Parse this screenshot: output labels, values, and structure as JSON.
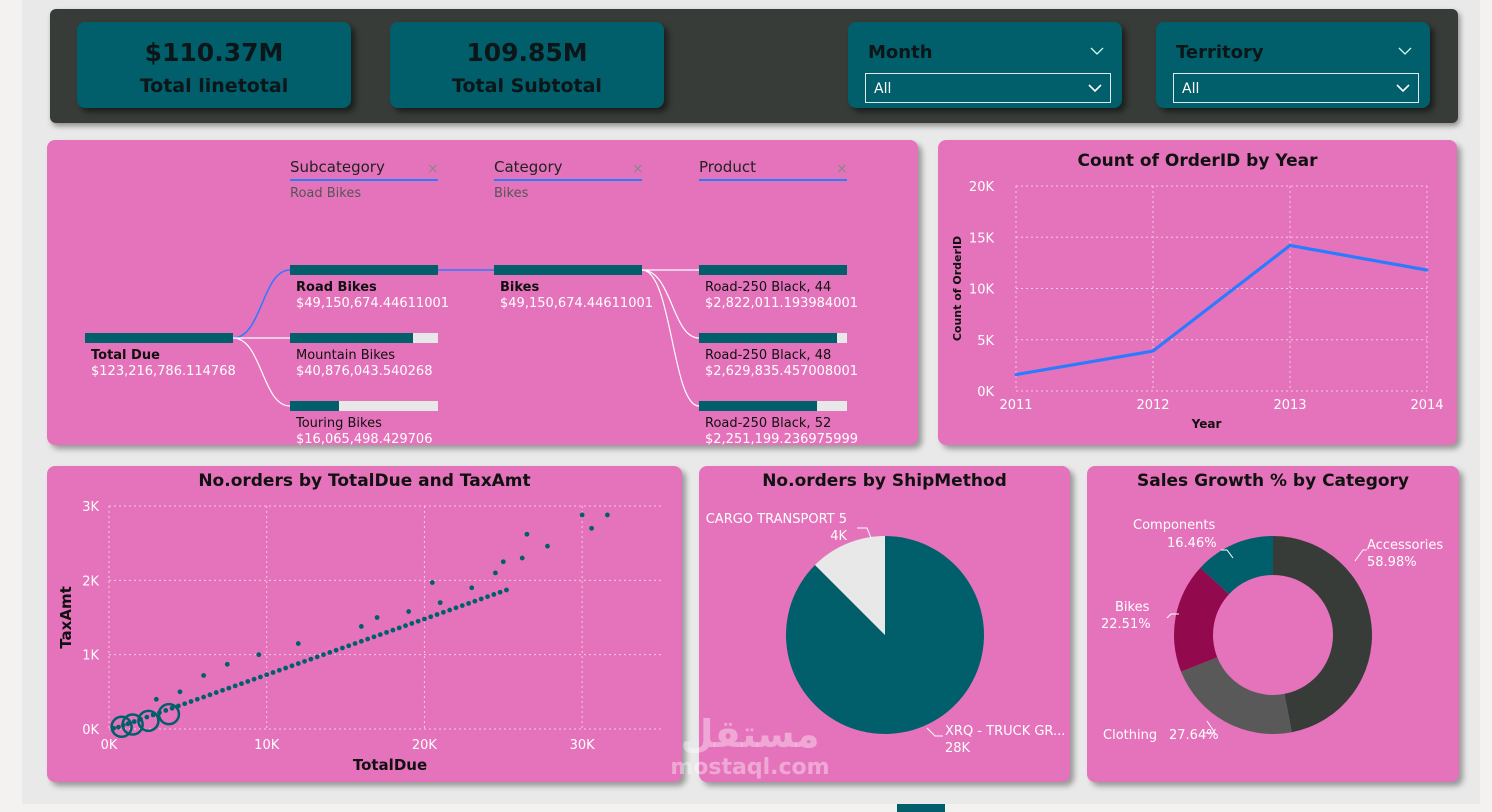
{
  "kpis": [
    {
      "value": "$110.37M",
      "label": "Total linetotal"
    },
    {
      "value": "109.85M",
      "label": "Total Subtotal"
    }
  ],
  "slicers": [
    {
      "title": "Month",
      "selected": "All"
    },
    {
      "title": "Territory",
      "selected": "All"
    }
  ],
  "decomposition": {
    "levels": [
      {
        "header": "Subcategory",
        "selection": "Road Bikes"
      },
      {
        "header": "Category",
        "selection": "Bikes"
      },
      {
        "header": "Product",
        "selection": ""
      }
    ],
    "root": {
      "label": "Total Due",
      "value": "$123,216,786.114768"
    },
    "subcategories": [
      {
        "label": "Road Bikes",
        "value": "$49,150,674.44611001",
        "fill": 1.0
      },
      {
        "label": "Mountain Bikes",
        "value": "$40,876,043.540268",
        "fill": 0.83
      },
      {
        "label": "Touring Bikes",
        "value": "$16,065,498.429706",
        "fill": 0.33
      }
    ],
    "categories": [
      {
        "label": "Bikes",
        "value": "$49,150,674.44611001",
        "fill": 1.0
      }
    ],
    "products": [
      {
        "label": "Road-250 Black, 44",
        "value": "$2,822,011.193984001",
        "fill": 1.0
      },
      {
        "label": "Road-250 Black, 48",
        "value": "$2,629,835.457008001",
        "fill": 0.93
      },
      {
        "label": "Road-250 Black, 52",
        "value": "$2,251,199.236975999",
        "fill": 0.8
      }
    ]
  },
  "colors": {
    "teal": "#005f6b",
    "pink": "#e573bb",
    "dark": "#373c38",
    "blue": "#2b7bff",
    "light": "#e8e8e8",
    "crimson": "#92094e",
    "grey": "#595959"
  },
  "chart_data": [
    {
      "type": "line",
      "title": "Count of OrderID by Year",
      "xlabel": "Year",
      "ylabel": "Count of OrderID",
      "x": [
        "2011",
        "2012",
        "2013",
        "2014"
      ],
      "values": [
        1600,
        3900,
        14200,
        11800
      ],
      "ylim": [
        0,
        20000
      ],
      "yticks": [
        "0K",
        "5K",
        "10K",
        "15K",
        "20K"
      ],
      "ytick_values": [
        0,
        5000,
        10000,
        15000,
        20000
      ]
    },
    {
      "type": "scatter",
      "title": "No.orders by TotalDue and TaxAmt",
      "xlabel": "TotalDue",
      "ylabel": "TaxAmt",
      "xlim": [
        0,
        35000
      ],
      "ylim": [
        0,
        3000
      ],
      "xticks": [
        "0K",
        "10K",
        "20K",
        "30K"
      ],
      "xtick_values": [
        0,
        10000,
        20000,
        30000
      ],
      "yticks": [
        "0K",
        "1K",
        "2K",
        "3K"
      ],
      "ytick_values": [
        0,
        1000,
        2000,
        3000
      ],
      "points": [
        [
          300,
          10
        ],
        [
          600,
          25
        ],
        [
          900,
          50
        ],
        [
          1200,
          70
        ],
        [
          1600,
          100
        ],
        [
          2000,
          130
        ],
        [
          2400,
          160
        ],
        [
          2800,
          190
        ],
        [
          3200,
          220
        ],
        [
          3600,
          250
        ],
        [
          4000,
          280
        ],
        [
          4400,
          310
        ],
        [
          4800,
          340
        ],
        [
          5200,
          370
        ],
        [
          5600,
          400
        ],
        [
          6000,
          430
        ],
        [
          6400,
          460
        ],
        [
          6800,
          490
        ],
        [
          7200,
          520
        ],
        [
          7600,
          550
        ],
        [
          8000,
          580
        ],
        [
          8400,
          610
        ],
        [
          8800,
          640
        ],
        [
          9200,
          670
        ],
        [
          9600,
          700
        ],
        [
          10000,
          730
        ],
        [
          10400,
          760
        ],
        [
          10800,
          790
        ],
        [
          11200,
          820
        ],
        [
          11600,
          850
        ],
        [
          12000,
          880
        ],
        [
          12400,
          910
        ],
        [
          12800,
          940
        ],
        [
          13200,
          970
        ],
        [
          13600,
          1000
        ],
        [
          14000,
          1030
        ],
        [
          14400,
          1060
        ],
        [
          14800,
          1090
        ],
        [
          15200,
          1120
        ],
        [
          15600,
          1150
        ],
        [
          16000,
          1180
        ],
        [
          16400,
          1210
        ],
        [
          16800,
          1240
        ],
        [
          17200,
          1270
        ],
        [
          17600,
          1300
        ],
        [
          18000,
          1330
        ],
        [
          18400,
          1360
        ],
        [
          18800,
          1390
        ],
        [
          19200,
          1420
        ],
        [
          19600,
          1450
        ],
        [
          20000,
          1480
        ],
        [
          20400,
          1510
        ],
        [
          20800,
          1540
        ],
        [
          21200,
          1570
        ],
        [
          21600,
          1600
        ],
        [
          22000,
          1630
        ],
        [
          22400,
          1660
        ],
        [
          22800,
          1690
        ],
        [
          23200,
          1720
        ],
        [
          23600,
          1750
        ],
        [
          24000,
          1780
        ],
        [
          24400,
          1810
        ],
        [
          24800,
          1840
        ],
        [
          25200,
          1870
        ],
        [
          3000,
          400
        ],
        [
          4500,
          500
        ],
        [
          6000,
          720
        ],
        [
          7500,
          870
        ],
        [
          9500,
          1000
        ],
        [
          12000,
          1150
        ],
        [
          17000,
          1500
        ],
        [
          20500,
          1970
        ],
        [
          23000,
          1900
        ],
        [
          24500,
          2100
        ],
        [
          25000,
          2250
        ],
        [
          26200,
          2300
        ],
        [
          27800,
          2460
        ],
        [
          30000,
          2880
        ],
        [
          31600,
          2880
        ],
        [
          30600,
          2700
        ],
        [
          26500,
          2620
        ],
        [
          21000,
          1700
        ],
        [
          19000,
          1580
        ],
        [
          16000,
          1380
        ]
      ],
      "bubbles": [
        [
          800,
          30
        ],
        [
          1500,
          60
        ],
        [
          2500,
          110
        ],
        [
          3800,
          200
        ]
      ]
    },
    {
      "type": "pie",
      "title": "No.orders by ShipMethod",
      "slices": [
        {
          "label": "CARGO TRANSPORT 5",
          "value_label": "4K",
          "value": 4
        },
        {
          "label": "XRQ - TRUCK GR...",
          "value_label": "28K",
          "value": 28
        }
      ]
    },
    {
      "type": "pie",
      "title": "Sales Growth % by Category",
      "donut": true,
      "slices": [
        {
          "label": "Accessories",
          "value_label": "58.98%",
          "value": 58.98
        },
        {
          "label": "Clothing",
          "value_label": "27.64%",
          "value": 27.64
        },
        {
          "label": "Bikes",
          "value_label": "22.51%",
          "value": 22.51
        },
        {
          "label": "Components",
          "value_label": "16.46%",
          "value": 16.46
        }
      ]
    }
  ],
  "watermark": {
    "brand": "مستقل",
    "domain": "mostaql.com"
  }
}
